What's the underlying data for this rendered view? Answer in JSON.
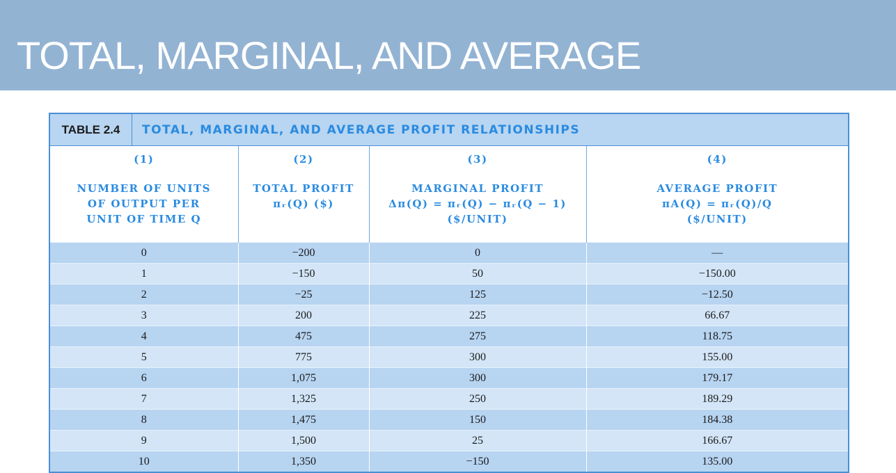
{
  "slide": {
    "title": "TOTAL, MARGINAL, AND AVERAGE"
  },
  "table": {
    "number": "TABLE 2.4",
    "title": "TOTAL, MARGINAL, AND AVERAGE PROFIT RELATIONSHIPS",
    "columns": [
      {
        "num": "(1)",
        "head": "NUMBER OF UNITS\nOF OUTPUT PER\nUNIT OF TIME Q"
      },
      {
        "num": "(2)",
        "head": "TOTAL PROFIT\nπᵣ(Q) ($)"
      },
      {
        "num": "(3)",
        "head": "MARGINAL PROFIT\nΔπ(Q) = πᵣ(Q) − πᵣ(Q − 1)\n($/UNIT)"
      },
      {
        "num": "(4)",
        "head": "AVERAGE PROFIT\nπA(Q) = πᵣ(Q)/Q\n($/UNIT)"
      }
    ],
    "rows": [
      [
        "0",
        "−200",
        "0",
        "—"
      ],
      [
        "1",
        "−150",
        "50",
        "−150.00"
      ],
      [
        "2",
        "−25",
        "125",
        "−12.50"
      ],
      [
        "3",
        "200",
        "225",
        "66.67"
      ],
      [
        "4",
        "475",
        "275",
        "118.75"
      ],
      [
        "5",
        "775",
        "300",
        "155.00"
      ],
      [
        "6",
        "1,075",
        "300",
        "179.17"
      ],
      [
        "7",
        "1,325",
        "250",
        "189.29"
      ],
      [
        "8",
        "1,475",
        "150",
        "184.38"
      ],
      [
        "9",
        "1,500",
        "25",
        "166.67"
      ],
      [
        "10",
        "1,350",
        "−150",
        "135.00"
      ]
    ]
  }
}
